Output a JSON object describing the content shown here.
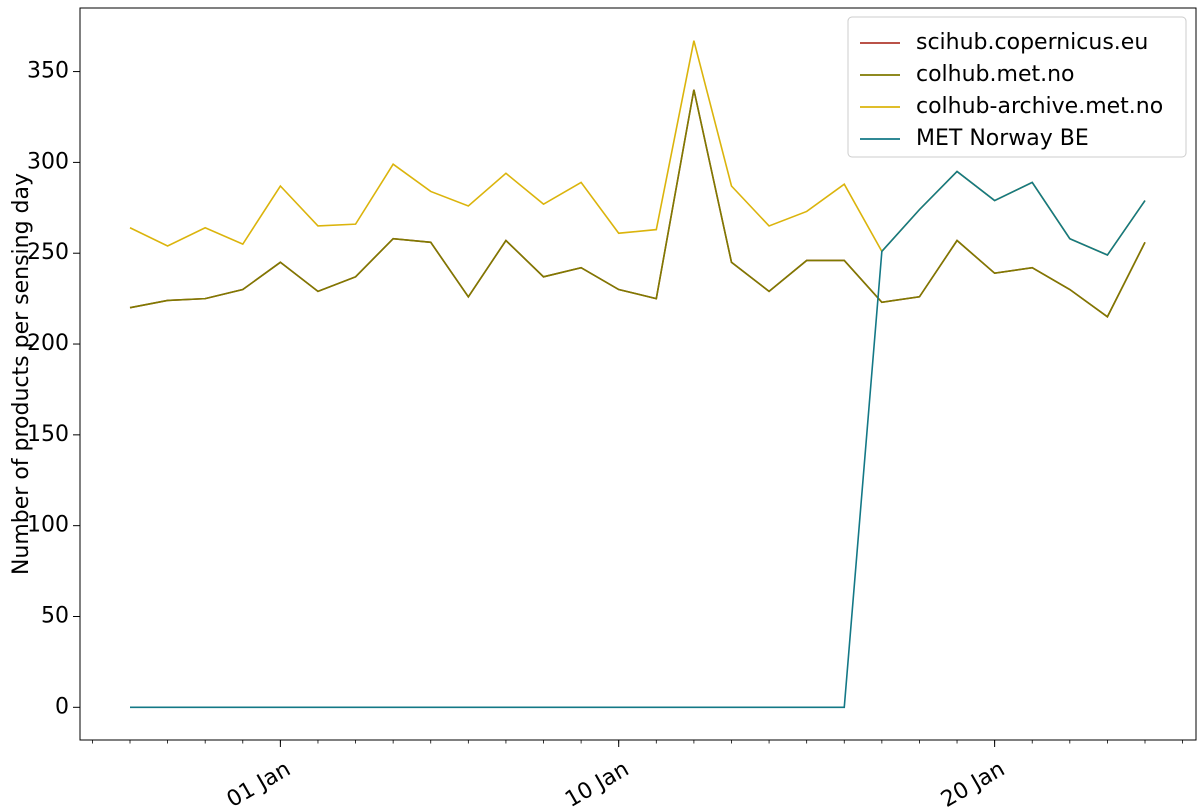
{
  "chart_data": {
    "type": "line",
    "ylabel": "Number of products per sensing day",
    "x": [
      "28 Dec",
      "29 Dec",
      "30 Dec",
      "31 Dec",
      "01 Jan",
      "02 Jan",
      "03 Jan",
      "04 Jan",
      "05 Jan",
      "06 Jan",
      "07 Jan",
      "08 Jan",
      "09 Jan",
      "10 Jan",
      "11 Jan",
      "12 Jan",
      "13 Jan",
      "14 Jan",
      "15 Jan",
      "16 Jan",
      "17 Jan",
      "18 Jan",
      "19 Jan",
      "20 Jan",
      "21 Jan",
      "22 Jan",
      "23 Jan",
      "24 Jan"
    ],
    "xticks": [
      "01 Jan",
      "10 Jan",
      "20 Jan"
    ],
    "ylim": [
      -18,
      385
    ],
    "yticks": [
      0,
      50,
      100,
      150,
      200,
      250,
      300,
      350
    ],
    "legend": "upper right",
    "series": [
      {
        "name": "scihub.copernicus.eu",
        "color": "#b03a2e",
        "values": [
          220,
          224,
          225,
          230,
          245,
          229,
          237,
          258,
          256,
          226,
          257,
          237,
          242,
          230,
          225,
          340,
          245,
          229,
          246,
          246,
          223,
          226,
          257,
          239,
          242,
          230,
          215,
          256
        ]
      },
      {
        "name": "colhub.met.no",
        "color": "#7f7a00",
        "values": [
          220,
          224,
          225,
          230,
          245,
          229,
          237,
          258,
          256,
          226,
          257,
          237,
          242,
          230,
          225,
          340,
          245,
          229,
          246,
          246,
          223,
          226,
          257,
          239,
          242,
          230,
          215,
          256
        ]
      },
      {
        "name": "colhub-archive.met.no",
        "color": "#dbb40c",
        "values": [
          264,
          254,
          264,
          255,
          287,
          265,
          266,
          299,
          284,
          276,
          294,
          277,
          289,
          261,
          263,
          367,
          287,
          265,
          273,
          288,
          251,
          274,
          295,
          279,
          289,
          258,
          249,
          279
        ]
      },
      {
        "name": "MET Norway BE",
        "color": "#137886",
        "values": [
          0,
          0,
          0,
          0,
          0,
          0,
          0,
          0,
          0,
          0,
          0,
          0,
          0,
          0,
          0,
          0,
          0,
          0,
          0,
          0,
          251,
          274,
          295,
          279,
          289,
          258,
          249,
          279
        ]
      }
    ]
  }
}
